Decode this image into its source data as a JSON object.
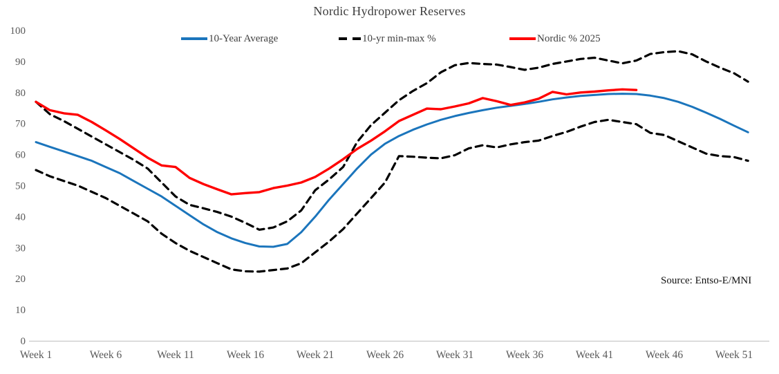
{
  "title": "Nordic Hydropower Reserves",
  "source_note": "Source: Entso-E/MNI",
  "colors": {
    "avg_blue": "#1B75BC",
    "minmax_black": "#000000",
    "nordic_red": "#FF0000",
    "axis_text": "#595959",
    "axis_line": "#C8C8C8",
    "title_text": "#3d3d3d"
  },
  "legend": [
    {
      "label": "10-Year Average",
      "color": "#1B75BC",
      "style": "solid"
    },
    {
      "label": "10-yr min-max %",
      "color": "#000000",
      "style": "dashed"
    },
    {
      "label": "Nordic % 2025",
      "color": "#FF0000",
      "style": "solid"
    }
  ],
  "chart_data": {
    "type": "line",
    "title": "Nordic Hydropower Reserves",
    "xlabel": "",
    "ylabel": "",
    "ylim": [
      0,
      100
    ],
    "yticks": [
      0,
      10,
      20,
      30,
      40,
      50,
      60,
      70,
      80,
      90,
      100
    ],
    "x_unit": "ISO week number",
    "weeks_total": 52,
    "xticks": [
      {
        "week": 1,
        "label": "Week 1"
      },
      {
        "week": 6,
        "label": "Week 6"
      },
      {
        "week": 11,
        "label": "Week 11"
      },
      {
        "week": 16,
        "label": "Week 16"
      },
      {
        "week": 21,
        "label": "Week 21"
      },
      {
        "week": 26,
        "label": "Week 26"
      },
      {
        "week": 31,
        "label": "Week 31"
      },
      {
        "week": 36,
        "label": "Week 36"
      },
      {
        "week": 41,
        "label": "Week 41"
      },
      {
        "week": 46,
        "label": "Week 46"
      },
      {
        "week": 51,
        "label": "Week 51"
      }
    ],
    "grid": "off",
    "legend_position": "top",
    "series": [
      {
        "key": "max",
        "name": "10-yr max %",
        "legend_group": "10-yr min-max %",
        "color": "#000000",
        "style": "dashed",
        "width": 3.2,
        "values": [
          77,
          73,
          70.8,
          68.3,
          65.8,
          63.3,
          60.8,
          58.3,
          55.5,
          51,
          46.5,
          43.8,
          42.7,
          41.5,
          40,
          38,
          35.8,
          36.5,
          38.5,
          42,
          48.5,
          52,
          56,
          64,
          69.5,
          73.5,
          77.5,
          80.5,
          83,
          86.5,
          88.8,
          89.5,
          89.2,
          89,
          88.2,
          87.3,
          88,
          89.2,
          90,
          90.8,
          91.2,
          90.3,
          89.4,
          90.3,
          92.4,
          93,
          93.3,
          92.3,
          90,
          88,
          86.2,
          83.5
        ]
      },
      {
        "key": "min",
        "name": "10-yr min %",
        "legend_group": "10-yr min-max %",
        "color": "#000000",
        "style": "dashed",
        "width": 3.2,
        "values": [
          55,
          53,
          51.5,
          50,
          48,
          46,
          43.5,
          41,
          38.5,
          34.5,
          31.5,
          29,
          27,
          25,
          23,
          22.4,
          22.3,
          22.8,
          23.3,
          25,
          28.5,
          32,
          36,
          41,
          46,
          51,
          59.5,
          59.3,
          59,
          58.8,
          59.8,
          62,
          63,
          62.3,
          63.3,
          64,
          64.5,
          66,
          67.3,
          69,
          70.5,
          71.2,
          70.5,
          69.8,
          67,
          66.3,
          64.3,
          62.3,
          60.3,
          59.5,
          59.2,
          58
        ]
      },
      {
        "key": "avg",
        "name": "10-Year Average",
        "legend_group": "10-Year Average",
        "color": "#1B75BC",
        "style": "solid",
        "width": 3,
        "values": [
          64,
          62.5,
          61,
          59.5,
          58,
          56,
          54,
          51.5,
          49,
          46.5,
          43.5,
          40.5,
          37.5,
          35,
          33,
          31.5,
          30.4,
          30.3,
          31.2,
          35,
          40,
          45.5,
          50.5,
          55.5,
          60,
          63.5,
          66,
          68,
          69.7,
          71.2,
          72.4,
          73.4,
          74.3,
          75.1,
          75.7,
          76.3,
          77,
          77.8,
          78.4,
          78.9,
          79.2,
          79.5,
          79.6,
          79.5,
          79,
          78.2,
          77,
          75.4,
          73.5,
          71.5,
          69.3,
          67.2
        ]
      },
      {
        "key": "nordic2025",
        "name": "Nordic % 2025",
        "legend_group": "Nordic % 2025",
        "color": "#FF0000",
        "style": "solid",
        "width": 3.4,
        "values": [
          77,
          74.3,
          73.3,
          72.8,
          70.5,
          67.8,
          65,
          62,
          59,
          56.5,
          56,
          52.5,
          50.5,
          48.8,
          47.2,
          47.6,
          47.9,
          49.2,
          50,
          51,
          52.8,
          55.5,
          58.5,
          61.8,
          64.5,
          67.5,
          70.8,
          72.8,
          74.8,
          74.6,
          75.5,
          76.5,
          78.2,
          77.2,
          76,
          76.8,
          78,
          80.2,
          79.4,
          80,
          80.3,
          80.7,
          81,
          80.8,
          null,
          null,
          null,
          null,
          null,
          null,
          null,
          null
        ]
      }
    ]
  }
}
